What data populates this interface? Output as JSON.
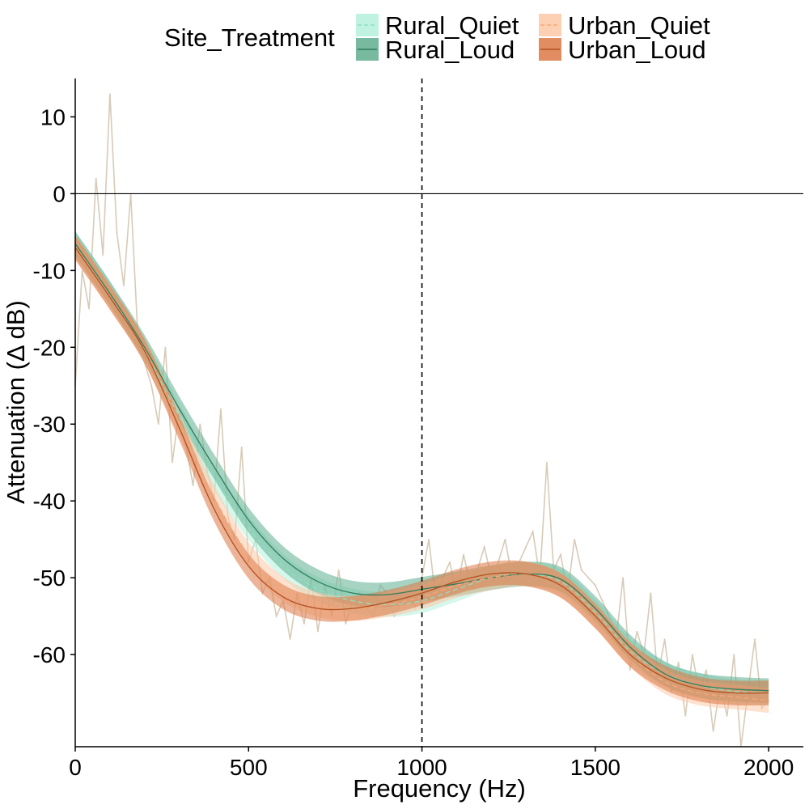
{
  "chart_data": {
    "type": "line",
    "xlabel": "Frequency (Hz)",
    "ylabel": "Attenuation (Δ dB)",
    "xlim": [
      0,
      2100
    ],
    "ylim": [
      -72,
      15
    ],
    "x_ticks": [
      0,
      500,
      1000,
      1500,
      2000
    ],
    "x_tick_labels": [
      "0",
      "500",
      "1000",
      "1500",
      "2000"
    ],
    "y_ticks": [
      10,
      0,
      -10,
      -20,
      -30,
      -40,
      -50,
      -60
    ],
    "y_tick_labels": [
      "10",
      "0",
      "-10",
      "-20",
      "-30",
      "-40",
      "-50",
      "-60"
    ],
    "grid": false,
    "reference_lines": [
      {
        "orientation": "horizontal",
        "value": 0,
        "style": "solid"
      },
      {
        "orientation": "vertical",
        "value": 1000,
        "style": "dashed"
      }
    ],
    "legend": {
      "title": "Site_Treatment",
      "position": "top",
      "entries": [
        "Rural_Quiet",
        "Rural_Loud",
        "Urban_Quiet",
        "Urban_Loud"
      ]
    },
    "x": [
      0,
      100,
      200,
      300,
      400,
      500,
      600,
      700,
      800,
      900,
      1000,
      1100,
      1200,
      1300,
      1400,
      1500,
      1600,
      1700,
      1800,
      1900,
      2000
    ],
    "series": [
      {
        "name": "Rural_Quiet",
        "color": "#b4f0dc",
        "line_color": "#8fe0c2",
        "dash": true,
        "values": [
          -6.5,
          -13,
          -20.5,
          -29,
          -37,
          -43.5,
          -48.5,
          -51.5,
          -53,
          -53.5,
          -53,
          -51.5,
          -50,
          -49.5,
          -50.5,
          -54.5,
          -59.5,
          -62.5,
          -64,
          -64.8,
          -65
        ]
      },
      {
        "name": "Rural_Loud",
        "color": "#5fae8f",
        "line_color": "#2f7d5e",
        "dash": false,
        "values": [
          -6.5,
          -13,
          -20,
          -28,
          -35.5,
          -42.5,
          -47.5,
          -50.5,
          -52,
          -52.2,
          -51.5,
          -50.8,
          -50,
          -49.5,
          -50.2,
          -54,
          -59,
          -62.5,
          -64,
          -64.5,
          -64.7
        ]
      },
      {
        "name": "Urban_Quiet",
        "color": "#fdc8a6",
        "line_color": "#f7a77a",
        "dash": true,
        "values": [
          -7,
          -13.5,
          -20.5,
          -30,
          -39.5,
          -47,
          -51.5,
          -53.5,
          -54,
          -53.5,
          -52.5,
          -51,
          -50,
          -49.5,
          -51,
          -55,
          -60,
          -63.5,
          -65,
          -65.5,
          -66
        ]
      },
      {
        "name": "Urban_Loud",
        "color": "#dc7845",
        "line_color": "#b2501f",
        "dash": false,
        "values": [
          -7,
          -13.5,
          -20.5,
          -30.5,
          -41,
          -48.5,
          -52.5,
          -54,
          -54,
          -53.2,
          -52,
          -50.5,
          -49.5,
          -49.5,
          -51,
          -55,
          -60,
          -63,
          -64.5,
          -65,
          -65
        ]
      }
    ],
    "raw_spectrum": {
      "name": "raw",
      "color": "#c9b9a0",
      "x": [
        0,
        20,
        40,
        60,
        80,
        100,
        120,
        140,
        160,
        180,
        200,
        220,
        240,
        260,
        280,
        300,
        320,
        340,
        360,
        380,
        400,
        420,
        440,
        460,
        480,
        500,
        520,
        540,
        560,
        580,
        600,
        620,
        640,
        660,
        680,
        700,
        720,
        740,
        760,
        780,
        800,
        820,
        840,
        860,
        880,
        900,
        920,
        940,
        960,
        980,
        1000,
        1020,
        1040,
        1060,
        1080,
        1100,
        1120,
        1140,
        1160,
        1180,
        1200,
        1220,
        1240,
        1260,
        1280,
        1300,
        1320,
        1340,
        1360,
        1380,
        1400,
        1420,
        1440,
        1460,
        1480,
        1500,
        1520,
        1540,
        1560,
        1580,
        1600,
        1620,
        1640,
        1660,
        1680,
        1700,
        1720,
        1740,
        1760,
        1780,
        1800,
        1820,
        1840,
        1860,
        1880,
        1900,
        1920,
        1940,
        1960,
        1980,
        2000
      ],
      "values": [
        -25,
        -10,
        -15,
        2,
        -8,
        13,
        -5,
        -12,
        0,
        -18,
        -22,
        -25,
        -30,
        -20,
        -35,
        -28,
        -33,
        -38,
        -30,
        -36,
        -40,
        -28,
        -42,
        -45,
        -33,
        -48,
        -45,
        -52,
        -50,
        -55,
        -53,
        -58,
        -52,
        -56,
        -50,
        -57,
        -51,
        -55,
        -49,
        -56,
        -53,
        -52,
        -54,
        -55,
        -51,
        -52,
        -55,
        -53,
        -52,
        -54,
        -50,
        -45,
        -53,
        -50,
        -48,
        -52,
        -47,
        -51,
        -49,
        -46,
        -50,
        -48,
        -45,
        -50,
        -48,
        -46,
        -44,
        -50,
        -35,
        -49,
        -47,
        -52,
        -45,
        -49,
        -50,
        -51,
        -53,
        -55,
        -58,
        -50,
        -62,
        -57,
        -60,
        -52,
        -63,
        -58,
        -65,
        -61,
        -68,
        -60,
        -65,
        -62,
        -70,
        -64,
        -68,
        -60,
        -72,
        -65,
        -58,
        -67,
        -66
      ]
    }
  }
}
